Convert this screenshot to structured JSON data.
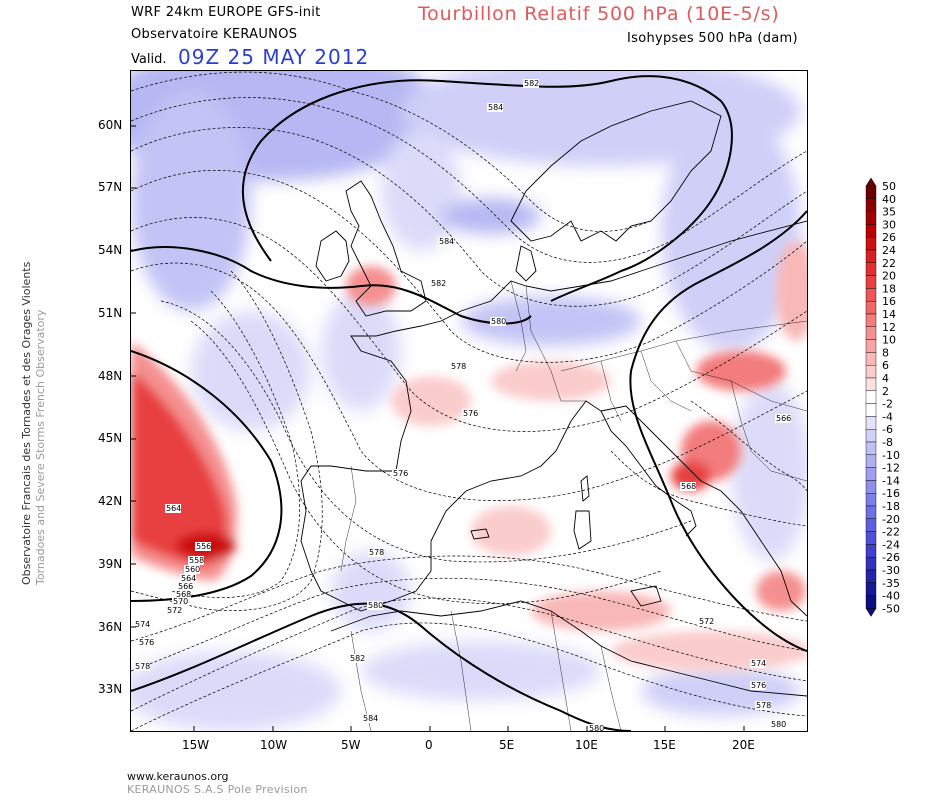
{
  "header": {
    "model_line": "WRF 24km EUROPE   GFS-init",
    "observatory": "Observatoire KERAUNOS",
    "valid_label": "Valid.",
    "valid_date": "09Z 25 MAY 2012",
    "title": "Tourbillon Relatif 500 hPa (10E-5/s)",
    "subtitle": "Isohypses 500 hPa (dam)"
  },
  "side": {
    "line1": "Observatoire Francais des Tornades et des Orages Violents",
    "line2": "Tornadoes and Severe Storms French Observatory"
  },
  "footer": {
    "url": "www.keraunos.org",
    "company": "KERAUNOS S.A.S Pole Prevision"
  },
  "axes": {
    "lat_labels": [
      "60N",
      "57N",
      "54N",
      "51N",
      "48N",
      "45N",
      "42N",
      "39N",
      "36N",
      "33N"
    ],
    "lon_labels": [
      "15W",
      "10W",
      "5W",
      "0",
      "5E",
      "10E",
      "15E",
      "20E"
    ]
  },
  "colorbar": {
    "labels": [
      "50",
      "40",
      "35",
      "30",
      "26",
      "24",
      "22",
      "20",
      "18",
      "16",
      "14",
      "12",
      "10",
      "8",
      "6",
      "4",
      "2",
      "-2",
      "-4",
      "-6",
      "-8",
      "-10",
      "-12",
      "-14",
      "-16",
      "-18",
      "-20",
      "-22",
      "-24",
      "-26",
      "-30",
      "-35",
      "-40",
      "-50"
    ],
    "colors": [
      "#6b0000",
      "#8b0000",
      "#a30000",
      "#bb0000",
      "#cc1111",
      "#d82020",
      "#e03030",
      "#e84040",
      "#ee5555",
      "#f06868",
      "#f37c7c",
      "#f59090",
      "#f7a4a4",
      "#f9b8b8",
      "#fbcccc",
      "#fde0e0",
      "#ffffff",
      "#ffffff",
      "#e2e2fb",
      "#d0d0f8",
      "#bfc0f5",
      "#afb0f2",
      "#9ea0ef",
      "#8e90ec",
      "#7e80e8",
      "#6e70e4",
      "#5e60df",
      "#4e50d8",
      "#4040cc",
      "#3232bb",
      "#2424a8",
      "#181894",
      "#0e0e80"
    ]
  },
  "contour_labels": [
    {
      "text": "582"
    },
    {
      "text": "584"
    },
    {
      "text": "584"
    },
    {
      "text": "582"
    },
    {
      "text": "580"
    },
    {
      "text": "578"
    },
    {
      "text": "576"
    },
    {
      "text": "576"
    },
    {
      "text": "578"
    },
    {
      "text": "580"
    },
    {
      "text": "582"
    },
    {
      "text": "584"
    },
    {
      "text": "580"
    },
    {
      "text": "566"
    },
    {
      "text": "568"
    },
    {
      "text": "572"
    },
    {
      "text": "574"
    },
    {
      "text": "576"
    },
    {
      "text": "578"
    },
    {
      "text": "580"
    },
    {
      "text": "564"
    },
    {
      "text": "556"
    },
    {
      "text": "558"
    },
    {
      "text": "560"
    },
    {
      "text": "564"
    },
    {
      "text": "566"
    },
    {
      "text": "568"
    },
    {
      "text": "570"
    },
    {
      "text": "572"
    },
    {
      "text": "574"
    },
    {
      "text": "576"
    },
    {
      "text": "578"
    }
  ],
  "colors": {
    "title": "#e05a5a",
    "valid_date": "#2a3fd0",
    "positive_vorticity": "#e84040",
    "negative_vorticity": "#7e80e8"
  }
}
